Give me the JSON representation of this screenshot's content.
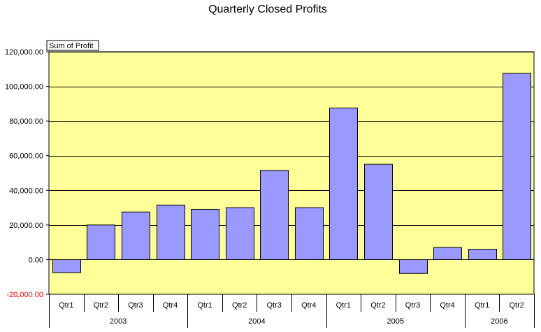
{
  "chart_data": {
    "type": "bar",
    "title": "Quarterly Closed Profits",
    "value_field_label": "Sum of Profit",
    "categories": [
      "Qtr1",
      "Qtr2",
      "Qtr3",
      "Qtr4",
      "Qtr1",
      "Qtr2",
      "Qtr3",
      "Qtr4",
      "Qtr1",
      "Qtr2",
      "Qtr3",
      "Qtr4",
      "Qtr1",
      "Qtr2"
    ],
    "groups": [
      {
        "label": "2003",
        "count": 4
      },
      {
        "label": "2004",
        "count": 4
      },
      {
        "label": "2005",
        "count": 4
      },
      {
        "label": "2006",
        "count": 2
      }
    ],
    "values": [
      -7500,
      20000,
      27500,
      31500,
      29000,
      30000,
      51500,
      30000,
      87500,
      55000,
      -8000,
      7000,
      6000,
      107500
    ],
    "ylim": [
      -20000,
      120000
    ],
    "yticks": [
      -20000,
      0,
      20000,
      40000,
      60000,
      80000,
      100000,
      120000
    ],
    "ytick_labels": [
      "-20,000.00",
      "0.00",
      "20,000.00",
      "40,000.00",
      "60,000.00",
      "80,000.00",
      "100,000.00",
      "120,000.00"
    ],
    "grid": true,
    "legend": "none",
    "colors": {
      "plot_background": "#ffff99",
      "bar_fill": "#9999ff",
      "bar_stroke": "#000000",
      "negative_tick": "#ff0000"
    }
  }
}
